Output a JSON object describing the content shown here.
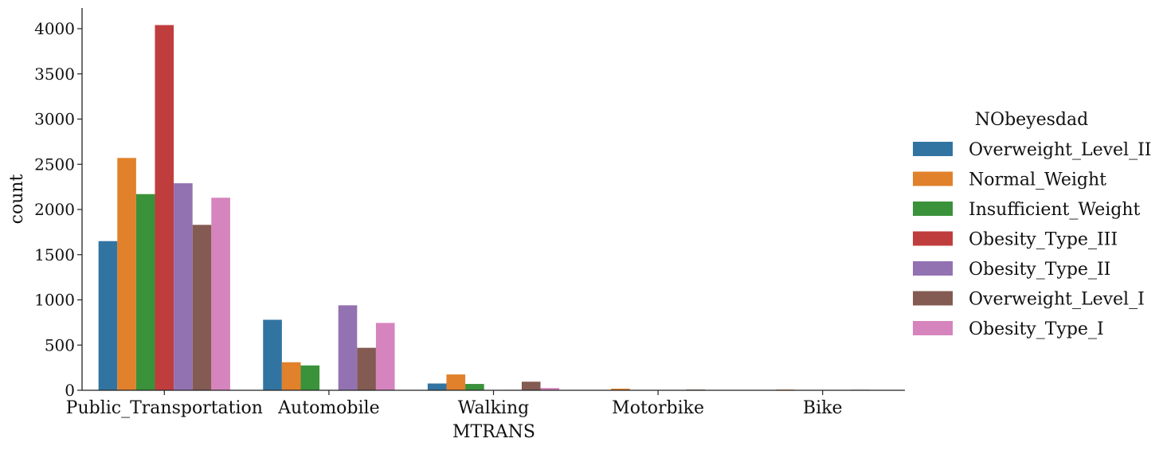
{
  "chart_data": {
    "type": "bar",
    "xlabel": "MTRANS",
    "ylabel": "count",
    "ylim": [
      0,
      4250
    ],
    "yticks": [
      0,
      500,
      1000,
      1500,
      2000,
      2500,
      3000,
      3500,
      4000
    ],
    "grid": false,
    "legend": {
      "title": "NObeyesdad",
      "placement": "right-outside"
    },
    "categories": [
      "Public_Transportation",
      "Automobile",
      "Walking",
      "Motorbike",
      "Bike"
    ],
    "series": [
      {
        "name": "Overweight_Level_II",
        "color": "#3274a1",
        "values": [
          1650,
          780,
          75,
          3,
          2
        ]
      },
      {
        "name": "Normal_Weight",
        "color": "#e1812c",
        "values": [
          2570,
          310,
          175,
          18,
          8
        ]
      },
      {
        "name": "Insufficient_Weight",
        "color": "#3a923a",
        "values": [
          2170,
          275,
          70,
          2,
          1
        ]
      },
      {
        "name": "Obesity_Type_III",
        "color": "#c03d3e",
        "values": [
          4040,
          2,
          1,
          1,
          1
        ]
      },
      {
        "name": "Obesity_Type_II",
        "color": "#9372b2",
        "values": [
          2290,
          940,
          5,
          2,
          1
        ]
      },
      {
        "name": "Overweight_Level_I",
        "color": "#845b53",
        "values": [
          1830,
          470,
          95,
          8,
          6
        ]
      },
      {
        "name": "Obesity_Type_I",
        "color": "#d684bd",
        "values": [
          2130,
          745,
          25,
          3,
          2
        ]
      }
    ]
  }
}
